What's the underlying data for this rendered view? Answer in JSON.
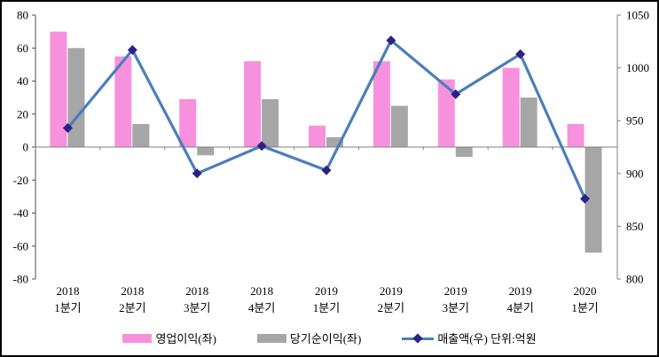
{
  "chart_data": {
    "type": "bar+line-combo",
    "categories": [
      {
        "year": "2018",
        "quarter": "1분기"
      },
      {
        "year": "2018",
        "quarter": "2분기"
      },
      {
        "year": "2018",
        "quarter": "3분기"
      },
      {
        "year": "2018",
        "quarter": "4분기"
      },
      {
        "year": "2019",
        "quarter": "1분기"
      },
      {
        "year": "2019",
        "quarter": "2분기"
      },
      {
        "year": "2019",
        "quarter": "3분기"
      },
      {
        "year": "2019",
        "quarter": "4분기"
      },
      {
        "year": "2020",
        "quarter": "1분기"
      }
    ],
    "series": [
      {
        "name": "영업이익(좌)",
        "type": "bar",
        "axis": "left",
        "color": "#F791DE",
        "values": [
          70,
          55,
          29,
          52,
          13,
          52,
          41,
          48,
          14
        ]
      },
      {
        "name": "당기순이익(좌)",
        "type": "bar",
        "axis": "left",
        "color": "#A6A6A6",
        "values": [
          60,
          14,
          -5,
          29,
          6,
          25,
          -6,
          30,
          -64
        ]
      },
      {
        "name": "매출액(우) 단위:억원",
        "type": "line",
        "axis": "right",
        "color": "#4A7EBB",
        "marker_color": "#2D2087",
        "values": [
          943,
          1017,
          900,
          926,
          903,
          1026,
          975,
          1013,
          876
        ]
      }
    ],
    "left_axis": {
      "min": -80,
      "max": 80,
      "step": 20,
      "tick_labels": [
        "80",
        "60",
        "40",
        "20",
        "0",
        "-20",
        "-40",
        "-60",
        "-80"
      ]
    },
    "right_axis": {
      "min": 800,
      "max": 1050,
      "step": 50,
      "tick_labels": [
        "1050",
        "1000",
        "950",
        "900",
        "850",
        "800"
      ]
    },
    "legend_position": "bottom",
    "grid": "off"
  },
  "colors": {
    "axis_line": "#808080",
    "left_axis_line": "#4d4d4d",
    "text": "#000000",
    "background": "#ffffff",
    "frame_border": "#000000"
  }
}
